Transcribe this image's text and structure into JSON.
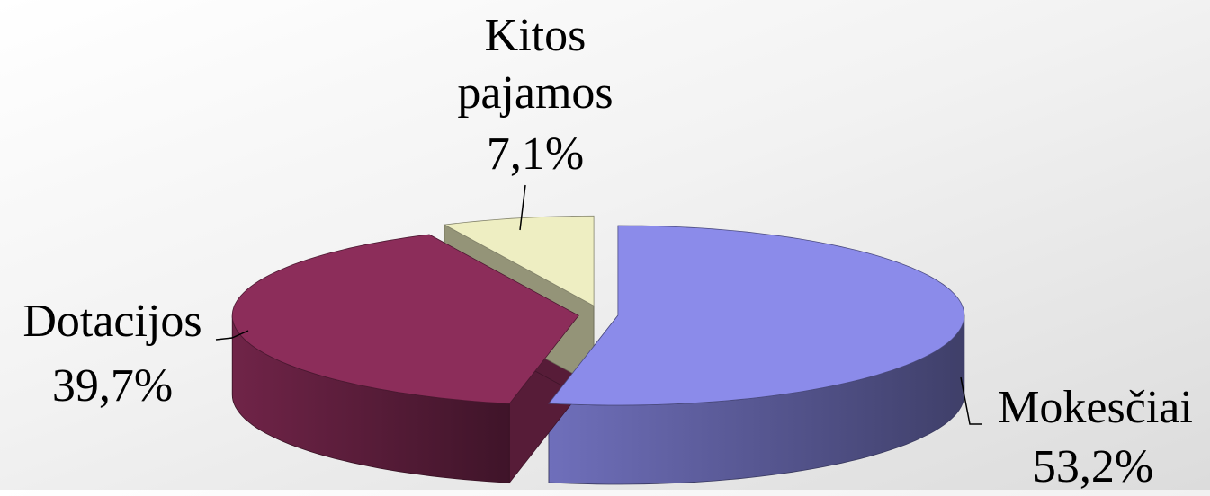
{
  "chart_data": {
    "type": "pie3d",
    "categories": [
      "Mokesčiai",
      "Dotacijos",
      "Kitos pajamos"
    ],
    "values": [
      53.2,
      39.7,
      7.1
    ],
    "value_labels": [
      "53,2%",
      "39,7%",
      "7,1%"
    ],
    "colors": [
      "#8b8bea",
      "#8c2d5a",
      "#eeeec2"
    ]
  }
}
